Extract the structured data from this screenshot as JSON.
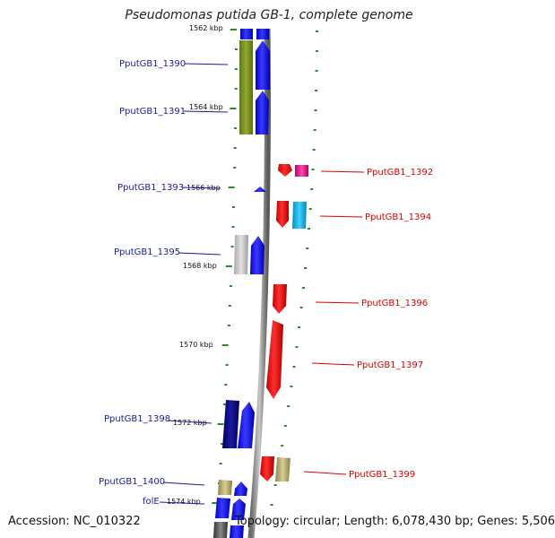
{
  "title": "Pseudomonas putida GB-1, complete genome",
  "footer": {
    "accession": "Accession: NC_010322",
    "summary": "Topology: circular; Length: 6,078,430 bp; Genes: 5,506"
  },
  "colors": {
    "left_label": "#1a1aa0",
    "right_label": "#e00000",
    "tick": "#2a8a2a",
    "backbone": "#808080"
  },
  "scale_labels": [
    "1562 kbp",
    "1564 kbp",
    "1566 kbp",
    "1568 kbp",
    "1570 kbp",
    "1572 kbp",
    "1574 kbp"
  ],
  "gene_labels_left": [
    "PputGB1_1390",
    "PputGB1_1391",
    "PputGB1_1393",
    "PputGB1_1395",
    "PputGB1_1398",
    "PputGB1_1400",
    "folE"
  ],
  "gene_labels_right": [
    "PputGB1_1392",
    "PputGB1_1394",
    "PputGB1_1396",
    "PputGB1_1397",
    "PputGB1_1399"
  ]
}
